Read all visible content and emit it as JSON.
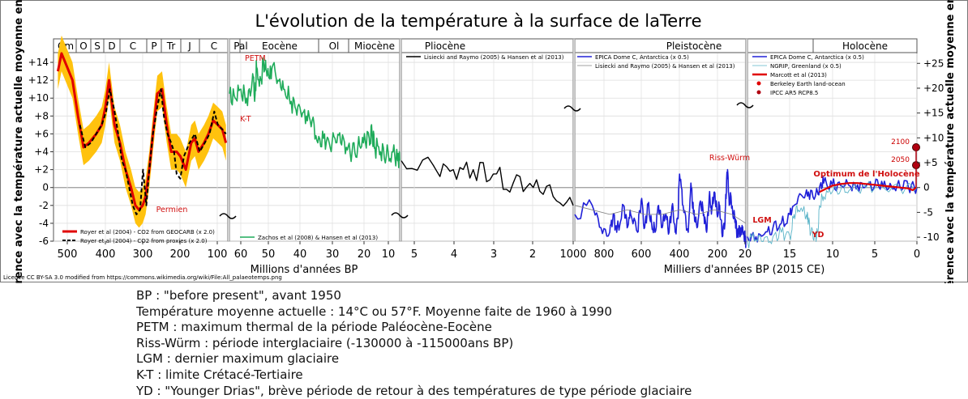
{
  "chart_data": {
    "type": "line",
    "title": "L'évolution de la température à la surface de laTerre",
    "ylabel_left": "Différence avec la température actuelle moyenne en °C",
    "ylabel_right": "Différence avec la température actuelle moyenne en °F",
    "ylim_c": [
      -6,
      15
    ],
    "yticks_c": [
      "+14",
      "+12",
      "+10",
      "+8",
      "+6",
      "+4",
      "+2",
      "0",
      "-2",
      "-4",
      "-6"
    ],
    "yticks_f": [
      "+25",
      "+20",
      "+15",
      "+10",
      "+5",
      "0",
      "-5",
      "-10"
    ],
    "grid": true,
    "periods": [
      "Cm",
      "O",
      "S",
      "D",
      "C",
      "P",
      "Tr",
      "J",
      "C",
      "Pal",
      "Eocène",
      "Ol",
      "Miocène",
      "Pliocène",
      "Pleistocène",
      "Holocène"
    ],
    "panels": [
      {
        "xlabel": "",
        "unit": "Ma",
        "xlim": [
          542,
          65
        ],
        "ticks": [
          "500",
          "400",
          "300",
          "200",
          "100"
        ]
      },
      {
        "xlabel": "Millions d'années BP",
        "unit": "Ma",
        "xlim": [
          65,
          5.3
        ],
        "ticks": [
          "60",
          "50",
          "40",
          "30",
          "20",
          "10"
        ]
      },
      {
        "xlabel": "",
        "unit": "Ma",
        "xlim": [
          5.3,
          1
        ],
        "ticks": [
          "5",
          "4",
          "3",
          "2",
          "1000"
        ]
      },
      {
        "xlabel": "Milliers d'années BP (2015 CE)",
        "unit": "ka",
        "xlim": [
          1000,
          20
        ],
        "ticks": [
          "800",
          "600",
          "400",
          "200",
          "20"
        ]
      },
      {
        "xlabel": "",
        "unit": "ka",
        "xlim": [
          20,
          0
        ],
        "ticks": [
          "15",
          "10",
          "5",
          "0"
        ]
      }
    ],
    "series": [
      {
        "name": "Royer et al (2004) - CO2 from GEOCARB (x 2.0)",
        "color": "#e00000",
        "unit": "Ma",
        "x": [
          530,
          520,
          505,
          490,
          475,
          460,
          445,
          435,
          425,
          410,
          400,
          390,
          375,
          360,
          345,
          330,
          318,
          308,
          298,
          290,
          280,
          270,
          258,
          245,
          232,
          220,
          205,
          195,
          180,
          165,
          155,
          145,
          130,
          118,
          105,
          92,
          80,
          70
        ],
        "y": [
          13,
          15,
          13.5,
          12,
          8,
          4.5,
          5,
          5.5,
          6,
          7,
          9,
          12,
          7,
          5,
          2,
          0,
          -2,
          -2.5,
          -2,
          -1,
          2,
          6,
          10.5,
          11,
          7,
          4,
          4,
          3.5,
          2,
          5,
          5.5,
          4,
          5,
          6,
          7.5,
          7,
          6.5,
          5
        ]
      },
      {
        "name": "Royer et al (2004) - CO2 from proxies (x 2.0)",
        "color": "#000000",
        "unit": "Ma",
        "x": [
          470,
          455,
          440,
          425,
          410,
          398,
          388,
          375,
          365,
          355,
          345,
          335,
          325,
          315,
          305,
          297,
          288,
          280,
          270,
          258,
          248,
          240,
          230,
          220,
          212,
          205,
          195,
          185,
          170,
          155,
          142,
          128,
          115,
          102,
          92,
          80,
          70
        ],
        "y": [
          7,
          4.5,
          5,
          6,
          7,
          8.5,
          11,
          8.5,
          6,
          3,
          2,
          0,
          -2,
          -3,
          -2.5,
          2,
          -2,
          2,
          6,
          9,
          11,
          8,
          6,
          5,
          4,
          1.5,
          1,
          3.5,
          5,
          6,
          4,
          5,
          6,
          8.5,
          7,
          6.5,
          6
        ]
      },
      {
        "name": "Zachos et al (2008) & Hansen et al (2013)",
        "color": "#1fab5a",
        "unit": "Ma",
        "x": [
          65,
          63,
          61,
          59,
          57,
          56,
          55.5,
          54,
          53,
          52,
          51,
          50,
          48,
          46,
          44,
          42,
          40,
          38,
          36,
          34,
          32,
          30,
          28,
          26,
          24,
          22,
          20,
          18,
          16,
          15,
          14,
          12,
          10,
          8,
          6,
          5.3
        ],
        "y": [
          10.5,
          10,
          11,
          10,
          12,
          10.5,
          13.5,
          12,
          14,
          13,
          12.5,
          13.5,
          12,
          11,
          10,
          9,
          8.5,
          8,
          7.5,
          5,
          5.5,
          5,
          5.5,
          5,
          4.5,
          4,
          4.5,
          5,
          5.5,
          6,
          4.5,
          4,
          3.5,
          4,
          3,
          3
        ]
      },
      {
        "name": "Lisiecki and Raymo (2005) & Hansen et al (2013)",
        "color": "#000000",
        "unit": "Ma",
        "x": [
          5.3,
          4.5,
          4,
          3.5,
          3,
          2.5,
          2,
          1.5,
          1
        ],
        "y": [
          3,
          2.5,
          2,
          2,
          1.5,
          0.5,
          0,
          -1,
          -2
        ]
      },
      {
        "name": "EPICA Dome C, Antarctica (x 0.5)",
        "color": "#2020d8",
        "unit": "ka",
        "x": [
          1000,
          900,
          850,
          800,
          780,
          760,
          720,
          700,
          680,
          640,
          620,
          600,
          580,
          560,
          540,
          520,
          500,
          480,
          460,
          440,
          425,
          410,
          400,
          380,
          350,
          335,
          320,
          300,
          280,
          260,
          245,
          230,
          215,
          200,
          185,
          170,
          155,
          140,
          130,
          125,
          115,
          105,
          95,
          80,
          70,
          60,
          50,
          40,
          30,
          25,
          20
        ],
        "y": [
          -3,
          -2,
          -4.5,
          -5,
          -3,
          -5,
          -2,
          -4.5,
          -3,
          -5,
          -1.5,
          -4.5,
          -2,
          -4,
          -5,
          -2,
          -4.5,
          -3,
          -5,
          -1.8,
          -5,
          -3.5,
          1.5,
          -2,
          -5,
          0.5,
          -3,
          -4.5,
          -1.5,
          -3,
          -5,
          -1,
          -2.5,
          -0.5,
          -3,
          -2,
          -5.5,
          -4,
          1,
          2,
          -2,
          -1,
          -3,
          -3.5,
          -5.5,
          -4.5,
          -5,
          -4.5,
          -5.5,
          -5.5,
          -6
        ]
      },
      {
        "name": "Lisiecki and Raymo (2005) & Hansen et al (2013)",
        "color": "#808080",
        "unit": "ka",
        "x": [
          1000,
          900,
          800,
          700,
          600,
          500,
          400,
          300,
          200,
          100,
          20
        ],
        "y": [
          -2,
          -2.5,
          -3,
          -2.5,
          -3,
          -3,
          -2.5,
          -3,
          -2.5,
          -3,
          -4
        ]
      },
      {
        "name": "EPICA Dome C, Antarctica (x 0.5)",
        "color": "#2020d8",
        "unit": "ka",
        "x": [
          20,
          19,
          18,
          17,
          16,
          15,
          14.5,
          13.5,
          12.8,
          12,
          11.5,
          11,
          10,
          9,
          8,
          7,
          6,
          5,
          4,
          3,
          2,
          1,
          0
        ],
        "y": [
          -5.5,
          -5.5,
          -5.2,
          -4.5,
          -4,
          -3,
          -2,
          -1,
          -0.5,
          -1,
          0,
          0.5,
          0.3,
          0.2,
          0.2,
          0.3,
          0.2,
          0.2,
          0.1,
          0.1,
          0.1,
          0,
          0
        ]
      },
      {
        "name": "NGRIP, Greenland (x 0.5)",
        "color": "#5ab4c8",
        "unit": "ka",
        "x": [
          20,
          19,
          18,
          17,
          16,
          15,
          14.5,
          14,
          13,
          12.8,
          12.5,
          12,
          11.7,
          11.5,
          11,
          10,
          9,
          8,
          6,
          4,
          2,
          0
        ],
        "y": [
          -6,
          -5.8,
          -5.6,
          -5.5,
          -5,
          -5.5,
          -3,
          -2.5,
          -3,
          -4,
          -5,
          -5.5,
          -5,
          -2,
          -1,
          -0.5,
          -0.3,
          -0.3,
          0,
          0,
          0,
          0
        ]
      },
      {
        "name": "Marcott et al (2013)",
        "color": "#e00000",
        "unit": "ka",
        "x": [
          11.5,
          10,
          9,
          8,
          7,
          6,
          5,
          4,
          3,
          2,
          1,
          0.5,
          0.1
        ],
        "y": [
          -0.5,
          0.2,
          0.4,
          0.5,
          0.5,
          0.4,
          0.3,
          0.2,
          0.1,
          0,
          -0.1,
          -0.3,
          0
        ]
      },
      {
        "name": "Berkeley Earth land-ocean",
        "color": "#e00000",
        "unit": "ka",
        "x": [],
        "y": []
      },
      {
        "name": "IPCC AR5 RCP8.5",
        "color": "#b00010",
        "unit": "ka",
        "x": [
          0,
          0
        ],
        "y": [
          2.5,
          4.5
        ],
        "labels": [
          "2050",
          "2100"
        ]
      }
    ],
    "annotations": [
      "PETM",
      "K-T",
      "Permien",
      "Riss-Würm",
      "LGM",
      "YD",
      "Optimum de l'Holocène"
    ]
  },
  "credit": "Licence CC BY-SA 3.0 modified from https://commons.wikimedia.org/wiki/File:All_palaeotemps.png",
  "notes": [
    "BP : \"before present\", avant 1950",
    "Température moyenne actuelle : 14°C  ou 57°F. Moyenne faite de 1960 à 1990",
    "PETM : maximum thermal de la période Paléocène-Eocène",
    "Riss-Würm : période interglaciaire (-130000 à -115000ans BP)",
    "LGM : dernier maximum glaciaire",
    "K-T : limite Crétacé-Tertiaire",
    "YD : \"Younger Drias\", brève période de retour à des températures de type période glaciaire"
  ]
}
